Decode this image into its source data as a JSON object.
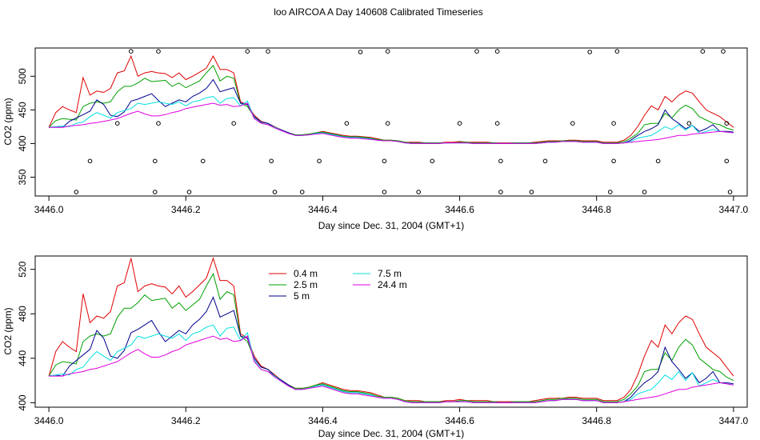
{
  "title": "loo AIRCOA A  Day 140608  Calibrated Timeseries",
  "colors": {
    "0.4 m": "#e00000",
    "2.5 m": "#00a000",
    "5 m": "#000090",
    "7.5 m": "#00e0e0",
    "24.4 m": "#e000e0",
    "point": "#000000"
  },
  "chart_data": [
    {
      "type": "line",
      "xlabel": "Day since Dec. 31, 2004 (GMT+1)",
      "ylabel": "CO2 (ppm)",
      "xlim": [
        3445.98,
        3447.02
      ],
      "ylim": [
        322,
        542
      ],
      "xticks": [
        "3446.0",
        "3446.2",
        "3446.4",
        "3446.6",
        "3446.8",
        "3447.0"
      ],
      "yticks": [
        "350",
        "400",
        "450",
        "500"
      ],
      "x_start": 3446.0,
      "x_step": 0.01,
      "series": [
        {
          "name": "0.4 m",
          "values": [
            424,
            446,
            455,
            450,
            446,
            498,
            472,
            478,
            476,
            482,
            505,
            508,
            530,
            500,
            505,
            507,
            505,
            504,
            498,
            505,
            495,
            500,
            506,
            512,
            530,
            510,
            510,
            505,
            462,
            458,
            442,
            433,
            430,
            425,
            420,
            416,
            413,
            413,
            414,
            416,
            418,
            416,
            414,
            412,
            411,
            411,
            410,
            409,
            407,
            405,
            405,
            404,
            402,
            402,
            402,
            401,
            401,
            401,
            402,
            402,
            403,
            402,
            402,
            402,
            402,
            401,
            401,
            401,
            401,
            401,
            401,
            402,
            403,
            404,
            404,
            404,
            405,
            405,
            404,
            404,
            404,
            402,
            402,
            402,
            405,
            412,
            425,
            442,
            456,
            450,
            470,
            462,
            472,
            478,
            475,
            462,
            450,
            445,
            440,
            432,
            424
          ]
        },
        {
          "name": "2.5 m",
          "values": [
            424,
            434,
            437,
            436,
            435,
            455,
            460,
            462,
            460,
            462,
            477,
            485,
            485,
            490,
            497,
            492,
            493,
            494,
            485,
            490,
            483,
            488,
            493,
            505,
            516,
            493,
            500,
            497,
            460,
            455,
            440,
            432,
            430,
            424,
            420,
            416,
            413,
            413,
            414,
            416,
            417,
            415,
            413,
            411,
            410,
            410,
            409,
            408,
            406,
            405,
            405,
            404,
            402,
            401,
            401,
            401,
            401,
            401,
            401,
            401,
            402,
            402,
            401,
            401,
            401,
            401,
            400,
            400,
            401,
            401,
            401,
            401,
            402,
            403,
            403,
            404,
            404,
            404,
            403,
            403,
            403,
            401,
            401,
            401,
            403,
            408,
            415,
            428,
            430,
            430,
            445,
            438,
            450,
            457,
            452,
            440,
            435,
            430,
            428,
            423,
            420
          ]
        },
        {
          "name": "5 m",
          "values": [
            424,
            425,
            424,
            433,
            438,
            443,
            448,
            465,
            458,
            442,
            440,
            447,
            463,
            466,
            470,
            474,
            464,
            455,
            460,
            465,
            462,
            470,
            475,
            482,
            495,
            477,
            480,
            483,
            460,
            458,
            440,
            432,
            430,
            424,
            420,
            416,
            412,
            412,
            413,
            415,
            416,
            414,
            412,
            410,
            409,
            409,
            408,
            407,
            405,
            404,
            404,
            403,
            401,
            400,
            400,
            400,
            400,
            400,
            401,
            401,
            401,
            401,
            400,
            400,
            400,
            400,
            400,
            400,
            400,
            400,
            400,
            400,
            401,
            402,
            402,
            403,
            403,
            403,
            402,
            402,
            402,
            400,
            400,
            400,
            401,
            405,
            412,
            418,
            422,
            428,
            450,
            437,
            430,
            422,
            427,
            418,
            422,
            428,
            418,
            418,
            417
          ]
        },
        {
          "name": "7.5 m",
          "values": [
            424,
            425,
            426,
            425,
            430,
            432,
            440,
            446,
            442,
            438,
            446,
            449,
            452,
            460,
            458,
            460,
            462,
            460,
            458,
            462,
            456,
            462,
            464,
            468,
            470,
            460,
            467,
            468,
            456,
            463,
            438,
            430,
            428,
            424,
            419,
            415,
            412,
            412,
            413,
            415,
            416,
            414,
            412,
            410,
            409,
            409,
            408,
            407,
            405,
            404,
            404,
            403,
            401,
            400,
            400,
            400,
            400,
            400,
            401,
            401,
            401,
            401,
            400,
            400,
            400,
            400,
            400,
            400,
            400,
            400,
            400,
            400,
            401,
            402,
            402,
            403,
            403,
            403,
            402,
            402,
            402,
            400,
            400,
            400,
            401,
            403,
            408,
            410,
            412,
            418,
            425,
            421,
            428,
            420,
            427,
            415,
            418,
            421,
            418,
            417,
            416
          ]
        },
        {
          "name": "24.4 m",
          "values": [
            424,
            424,
            424,
            426,
            427,
            428,
            430,
            431,
            433,
            435,
            437,
            441,
            445,
            448,
            444,
            441,
            441,
            443,
            446,
            448,
            452,
            454,
            456,
            458,
            460,
            457,
            458,
            455,
            456,
            460,
            437,
            430,
            428,
            423,
            419,
            415,
            412,
            412,
            413,
            414,
            415,
            413,
            411,
            409,
            408,
            408,
            407,
            406,
            405,
            404,
            404,
            403,
            401,
            400,
            400,
            400,
            400,
            400,
            401,
            401,
            401,
            401,
            400,
            400,
            400,
            400,
            400,
            400,
            400,
            400,
            400,
            400,
            401,
            402,
            402,
            403,
            403,
            403,
            402,
            402,
            402,
            400,
            400,
            400,
            401,
            402,
            403,
            404,
            405,
            406,
            408,
            410,
            412,
            412,
            414,
            415,
            416,
            417,
            418,
            417,
            416
          ]
        }
      ],
      "points": [
        [
          3446.04,
          328
        ],
        [
          3446.06,
          374
        ],
        [
          3446.1,
          430
        ],
        [
          3446.12,
          537
        ],
        [
          3446.155,
          328
        ],
        [
          3446.155,
          374
        ],
        [
          3446.16,
          430
        ],
        [
          3446.16,
          537
        ],
        [
          3446.205,
          328
        ],
        [
          3446.225,
          374
        ],
        [
          3446.27,
          430
        ],
        [
          3446.29,
          537
        ],
        [
          3446.32,
          537
        ],
        [
          3446.325,
          374
        ],
        [
          3446.33,
          328
        ],
        [
          3446.37,
          328
        ],
        [
          3446.395,
          374
        ],
        [
          3446.435,
          430
        ],
        [
          3446.455,
          536
        ],
        [
          3446.49,
          328
        ],
        [
          3446.49,
          374
        ],
        [
          3446.495,
          430
        ],
        [
          3446.495,
          537
        ],
        [
          3446.54,
          328
        ],
        [
          3446.56,
          374
        ],
        [
          3446.6,
          430
        ],
        [
          3446.625,
          537
        ],
        [
          3446.655,
          537
        ],
        [
          3446.655,
          430
        ],
        [
          3446.66,
          374
        ],
        [
          3446.66,
          328
        ],
        [
          3446.705,
          328
        ],
        [
          3446.725,
          374
        ],
        [
          3446.765,
          430
        ],
        [
          3446.79,
          536
        ],
        [
          3446.82,
          328
        ],
        [
          3446.825,
          430
        ],
        [
          3446.825,
          374
        ],
        [
          3446.83,
          537
        ],
        [
          3446.87,
          328
        ],
        [
          3446.89,
          374
        ],
        [
          3446.935,
          430
        ],
        [
          3446.955,
          537
        ],
        [
          3446.985,
          537
        ],
        [
          3446.99,
          430
        ],
        [
          3446.99,
          374
        ],
        [
          3446.995,
          328
        ]
      ]
    },
    {
      "type": "line",
      "xlabel": "Day since Dec. 31, 2004 (GMT+1)",
      "ylabel": "CO2 (ppm)",
      "xlim": [
        3445.98,
        3447.02
      ],
      "ylim": [
        396,
        532
      ],
      "xticks": [
        "3446.0",
        "3446.2",
        "3446.4",
        "3446.6",
        "3446.8",
        "3447.0"
      ],
      "yticks": [
        "400",
        "440",
        "480",
        "520"
      ],
      "legend": [
        "0.4 m",
        "2.5 m",
        "5 m",
        "7.5 m",
        "24.4 m"
      ],
      "legend_position": "top-left",
      "series_source": "same as panel 1"
    }
  ]
}
